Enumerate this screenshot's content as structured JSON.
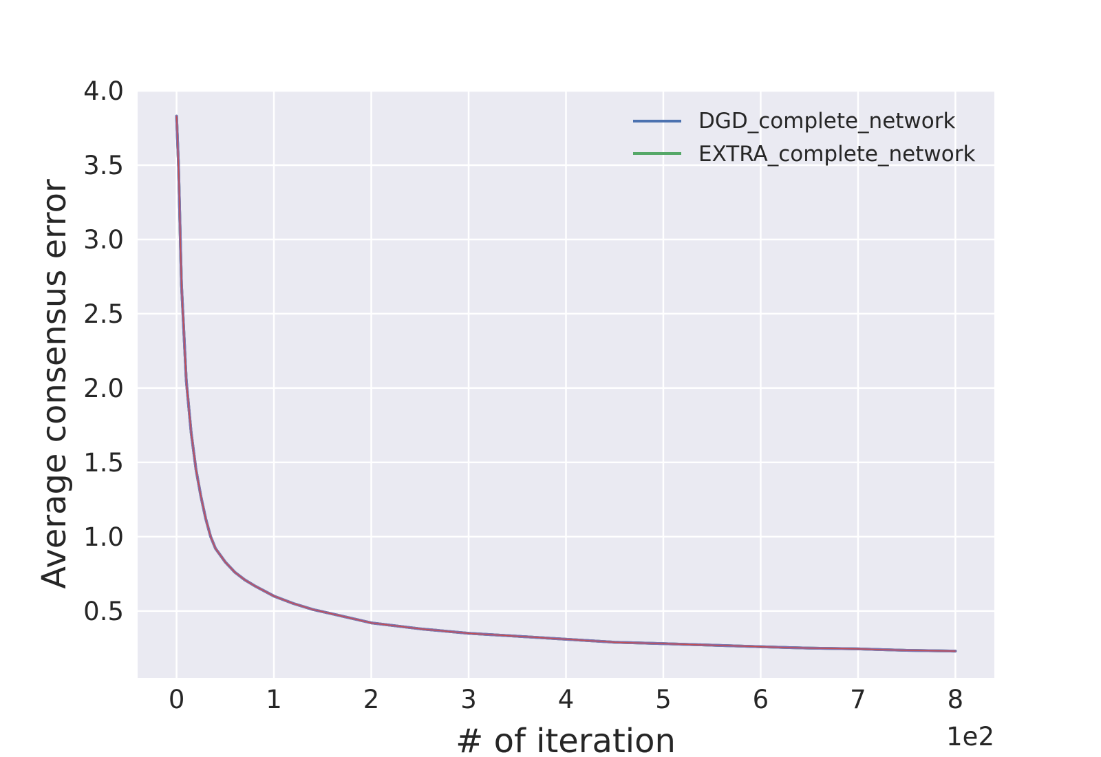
{
  "chart_data": {
    "type": "line",
    "title": "",
    "xlabel": "# of iteration",
    "ylabel": "Average consensus error",
    "x_offset_label": "1e2",
    "xlim": [
      -0.4,
      8.4
    ],
    "ylim": [
      0.05,
      4.0
    ],
    "x_ticks": [
      0,
      1,
      2,
      3,
      4,
      5,
      6,
      7,
      8
    ],
    "x_tick_labels": [
      "0",
      "1",
      "2",
      "3",
      "4",
      "5",
      "6",
      "7",
      "8"
    ],
    "y_ticks": [
      0.5,
      1.0,
      1.5,
      2.0,
      2.5,
      3.0,
      3.5,
      4.0
    ],
    "y_tick_labels": [
      "0.5",
      "1.0",
      "1.5",
      "2.0",
      "2.5",
      "3.0",
      "3.5",
      "4.0"
    ],
    "grid": true,
    "legend_position": "top-right",
    "background": "#EAEAF2",
    "series": [
      {
        "name": "DGD_complete_network",
        "color": "#4C72B0",
        "x": [
          0,
          0.02,
          0.05,
          0.1,
          0.15,
          0.2,
          0.25,
          0.3,
          0.35,
          0.4,
          0.5,
          0.6,
          0.7,
          0.8,
          1.0,
          1.2,
          1.4,
          1.6,
          1.8,
          2.0,
          2.5,
          3.0,
          3.5,
          4.0,
          4.5,
          5.0,
          5.5,
          6.0,
          6.5,
          7.0,
          7.5,
          8.0
        ],
        "y": [
          3.83,
          3.5,
          2.7,
          2.05,
          1.7,
          1.45,
          1.27,
          1.12,
          1.0,
          0.92,
          0.83,
          0.76,
          0.71,
          0.67,
          0.6,
          0.55,
          0.51,
          0.48,
          0.45,
          0.42,
          0.38,
          0.35,
          0.33,
          0.31,
          0.29,
          0.28,
          0.27,
          0.26,
          0.25,
          0.245,
          0.235,
          0.23
        ]
      },
      {
        "name": "EXTRA_complete_network",
        "color": "#55A868",
        "x": [
          0,
          0.02,
          0.05,
          0.1,
          0.15,
          0.2,
          0.25,
          0.3,
          0.35,
          0.4,
          0.5,
          0.6,
          0.7,
          0.8,
          1.0,
          1.2,
          1.4,
          1.6,
          1.8,
          2.0,
          2.5,
          3.0,
          3.5,
          4.0,
          4.5,
          5.0,
          5.5,
          6.0,
          6.5,
          7.0,
          7.5,
          8.0
        ],
        "y": [
          3.83,
          3.5,
          2.7,
          2.05,
          1.7,
          1.45,
          1.27,
          1.12,
          1.0,
          0.92,
          0.83,
          0.76,
          0.71,
          0.67,
          0.6,
          0.55,
          0.51,
          0.48,
          0.45,
          0.42,
          0.38,
          0.35,
          0.33,
          0.31,
          0.29,
          0.28,
          0.27,
          0.26,
          0.25,
          0.245,
          0.235,
          0.23
        ]
      }
    ],
    "overlay_color": "#8172B2",
    "fit_color": "#C44E52"
  }
}
